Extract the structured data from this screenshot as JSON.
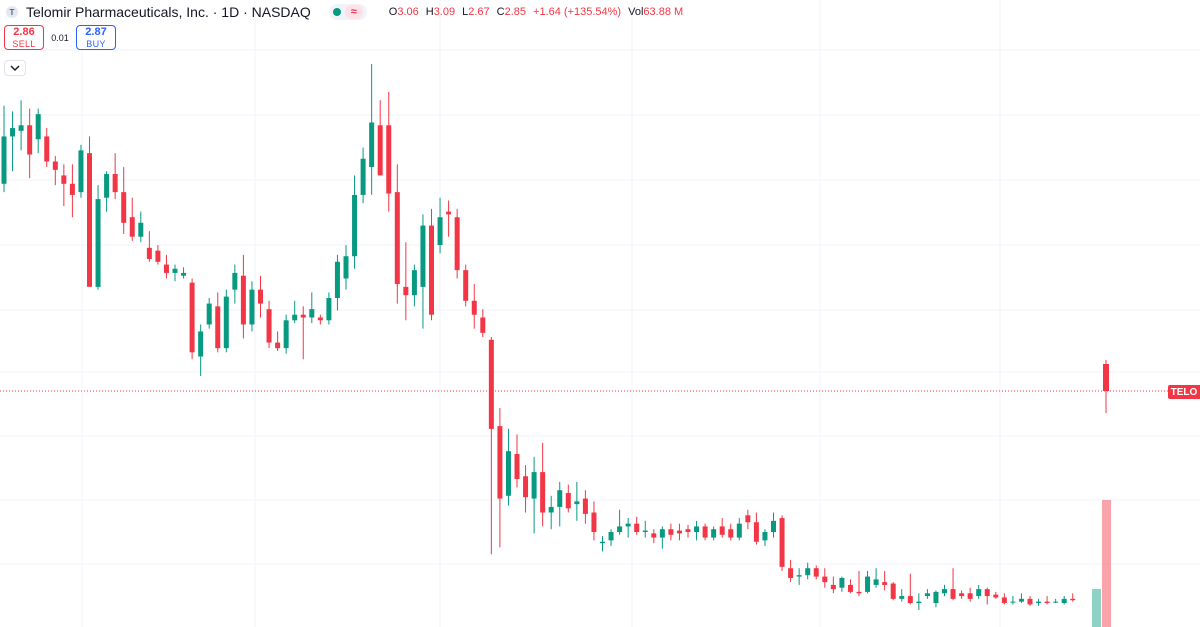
{
  "legend": {
    "symbol_icon": "T",
    "title": "Telomir Pharmaceuticals, Inc. · 1D · NASDAQ",
    "status_icons": [
      "market-open-dot-icon",
      "approx-icon"
    ],
    "approx_glyph": "≈",
    "ohlc": {
      "open_label": "O",
      "open": "3.06",
      "high_label": "H",
      "high": "3.09",
      "low_label": "L",
      "low": "2.67",
      "close_label": "C",
      "close": "2.85",
      "change": "+1.64 (+135.54%)",
      "vol_label": "Vol",
      "volume": "63.88 M"
    }
  },
  "trade": {
    "sell_price": "2.86",
    "sell_label": "SELL",
    "spread": "0.01",
    "buy_price": "2.87",
    "buy_label": "BUY"
  },
  "price_tag": "TELO",
  "colors": {
    "up": "#089981",
    "down": "#f23645",
    "grid": "#f0f3fa"
  },
  "chart_data": {
    "type": "candlestick",
    "ohlc": [
      [
        3.06,
        3.62,
        3.0,
        3.4
      ],
      [
        3.4,
        3.58,
        3.15,
        3.46
      ],
      [
        3.44,
        3.66,
        3.3,
        3.48
      ],
      [
        3.48,
        3.6,
        3.1,
        3.27
      ],
      [
        3.38,
        3.6,
        3.28,
        3.56
      ],
      [
        3.4,
        3.46,
        3.18,
        3.22
      ],
      [
        3.22,
        3.26,
        3.05,
        3.16
      ],
      [
        3.12,
        3.2,
        2.9,
        3.06
      ],
      [
        3.06,
        3.2,
        2.82,
        2.98
      ],
      [
        3.0,
        3.34,
        2.96,
        3.3
      ],
      [
        3.28,
        3.4,
        2.35,
        2.32
      ],
      [
        2.32,
        3.05,
        2.3,
        2.95
      ],
      [
        2.96,
        3.15,
        2.86,
        3.13
      ],
      [
        3.13,
        3.28,
        2.95,
        3.0
      ],
      [
        3.0,
        3.18,
        2.7,
        2.78
      ],
      [
        2.82,
        2.96,
        2.65,
        2.68
      ],
      [
        2.68,
        2.86,
        2.64,
        2.78
      ],
      [
        2.6,
        2.72,
        2.5,
        2.52
      ],
      [
        2.58,
        2.62,
        2.48,
        2.5
      ],
      [
        2.48,
        2.55,
        2.38,
        2.42
      ],
      [
        2.42,
        2.48,
        2.36,
        2.45
      ],
      [
        2.4,
        2.46,
        2.38,
        2.42
      ],
      [
        2.35,
        2.38,
        1.8,
        1.85
      ],
      [
        1.82,
        2.05,
        1.68,
        2.0
      ],
      [
        2.05,
        2.24,
        2.02,
        2.2
      ],
      [
        2.18,
        2.28,
        1.85,
        1.88
      ],
      [
        1.88,
        2.3,
        1.85,
        2.25
      ],
      [
        2.3,
        2.48,
        2.2,
        2.42
      ],
      [
        2.4,
        2.55,
        1.95,
        2.05
      ],
      [
        2.05,
        2.36,
        2.0,
        2.3
      ],
      [
        2.3,
        2.4,
        2.1,
        2.2
      ],
      [
        2.16,
        2.22,
        1.88,
        1.92
      ],
      [
        1.92,
        2.0,
        1.86,
        1.88
      ],
      [
        1.88,
        2.12,
        1.84,
        2.08
      ],
      [
        2.08,
        2.22,
        2.06,
        2.12
      ],
      [
        2.12,
        2.18,
        1.8,
        2.1
      ],
      [
        2.1,
        2.28,
        2.06,
        2.16
      ],
      [
        2.1,
        2.12,
        2.05,
        2.08
      ],
      [
        2.08,
        2.28,
        2.05,
        2.24
      ],
      [
        2.24,
        2.55,
        2.15,
        2.5
      ],
      [
        2.38,
        2.62,
        2.3,
        2.54
      ],
      [
        2.54,
        3.12,
        2.45,
        2.98
      ],
      [
        2.98,
        3.32,
        2.92,
        3.24
      ],
      [
        3.18,
        3.92,
        2.98,
        3.5
      ],
      [
        3.48,
        3.66,
        3.12,
        3.12
      ],
      [
        3.48,
        3.72,
        2.86,
        2.99
      ],
      [
        3.0,
        3.2,
        2.2,
        2.34
      ],
      [
        2.32,
        2.64,
        2.08,
        2.26
      ],
      [
        2.26,
        2.48,
        2.18,
        2.44
      ],
      [
        2.32,
        2.84,
        2.02,
        2.76
      ],
      [
        2.76,
        2.88,
        2.08,
        2.12
      ],
      [
        2.62,
        2.96,
        2.56,
        2.82
      ],
      [
        2.86,
        2.94,
        2.68,
        2.84
      ],
      [
        2.82,
        2.88,
        2.38,
        2.44
      ],
      [
        2.44,
        2.48,
        2.18,
        2.22
      ],
      [
        2.22,
        2.34,
        2.02,
        2.12
      ],
      [
        2.1,
        2.16,
        1.96,
        1.99
      ],
      [
        1.94,
        1.96,
        0.4,
        1.3
      ],
      [
        1.32,
        1.45,
        0.45,
        0.8
      ],
      [
        0.82,
        1.3,
        0.75,
        1.14
      ],
      [
        1.12,
        1.26,
        0.88,
        0.94
      ],
      [
        0.96,
        1.04,
        0.7,
        0.81
      ],
      [
        0.8,
        1.1,
        0.55,
        0.99
      ],
      [
        0.99,
        1.2,
        0.6,
        0.7
      ],
      [
        0.7,
        0.82,
        0.58,
        0.74
      ],
      [
        0.74,
        0.92,
        0.6,
        0.86
      ],
      [
        0.84,
        0.9,
        0.7,
        0.73
      ],
      [
        0.76,
        0.92,
        0.64,
        0.78
      ],
      [
        0.8,
        0.86,
        0.62,
        0.69
      ],
      [
        0.7,
        0.78,
        0.5,
        0.56
      ],
      [
        0.48,
        0.53,
        0.42,
        0.49
      ],
      [
        0.5,
        0.58,
        0.46,
        0.56
      ],
      [
        0.56,
        0.72,
        0.54,
        0.6
      ],
      [
        0.6,
        0.66,
        0.52,
        0.62
      ],
      [
        0.62,
        0.67,
        0.54,
        0.56
      ],
      [
        0.56,
        0.64,
        0.52,
        0.57
      ],
      [
        0.55,
        0.58,
        0.48,
        0.52
      ],
      [
        0.52,
        0.6,
        0.44,
        0.58
      ],
      [
        0.58,
        0.62,
        0.5,
        0.54
      ],
      [
        0.57,
        0.62,
        0.5,
        0.55
      ],
      [
        0.58,
        0.61,
        0.52,
        0.56
      ],
      [
        0.56,
        0.64,
        0.5,
        0.6
      ],
      [
        0.6,
        0.62,
        0.5,
        0.52
      ],
      [
        0.52,
        0.6,
        0.5,
        0.58
      ],
      [
        0.6,
        0.66,
        0.52,
        0.54
      ],
      [
        0.58,
        0.62,
        0.5,
        0.52
      ],
      [
        0.52,
        0.66,
        0.5,
        0.62
      ],
      [
        0.68,
        0.72,
        0.58,
        0.63
      ],
      [
        0.63,
        0.7,
        0.47,
        0.49
      ],
      [
        0.5,
        0.58,
        0.46,
        0.56
      ],
      [
        0.56,
        0.7,
        0.52,
        0.64
      ],
      [
        0.66,
        0.68,
        0.28,
        0.31
      ],
      [
        0.3,
        0.36,
        0.2,
        0.23
      ],
      [
        0.24,
        0.3,
        0.18,
        0.25
      ],
      [
        0.25,
        0.34,
        0.22,
        0.3
      ],
      [
        0.3,
        0.32,
        0.22,
        0.24
      ],
      [
        0.24,
        0.3,
        0.16,
        0.2
      ],
      [
        0.18,
        0.24,
        0.12,
        0.15
      ],
      [
        0.16,
        0.24,
        0.13,
        0.23
      ],
      [
        0.18,
        0.22,
        0.12,
        0.13
      ],
      [
        0.13,
        0.28,
        0.1,
        0.12
      ],
      [
        0.13,
        0.28,
        0.12,
        0.24
      ],
      [
        0.18,
        0.3,
        0.16,
        0.22
      ],
      [
        0.2,
        0.28,
        0.14,
        0.18
      ],
      [
        0.19,
        0.2,
        0.07,
        0.08
      ],
      [
        0.08,
        0.15,
        0.06,
        0.1
      ],
      [
        0.1,
        0.26,
        0.04,
        0.05
      ],
      [
        0.05,
        0.12,
        0.0,
        0.06
      ],
      [
        0.1,
        0.15,
        0.08,
        0.12
      ],
      [
        0.05,
        0.14,
        0.02,
        0.13
      ],
      [
        0.12,
        0.18,
        0.1,
        0.15
      ],
      [
        0.15,
        0.3,
        0.07,
        0.08
      ],
      [
        0.12,
        0.14,
        0.08,
        0.1
      ],
      [
        0.12,
        0.16,
        0.06,
        0.08
      ],
      [
        0.1,
        0.18,
        0.08,
        0.15
      ],
      [
        0.15,
        0.16,
        0.04,
        0.1
      ],
      [
        0.11,
        0.13,
        0.08,
        0.09
      ],
      [
        0.09,
        0.12,
        0.04,
        0.05
      ],
      [
        0.06,
        0.1,
        0.04,
        0.06
      ],
      [
        0.06,
        0.12,
        0.05,
        0.08
      ],
      [
        0.08,
        0.1,
        0.03,
        0.04
      ],
      [
        0.05,
        0.08,
        0.03,
        0.06
      ],
      [
        0.06,
        0.1,
        0.04,
        0.05
      ],
      [
        0.06,
        0.08,
        0.05,
        0.06
      ],
      [
        0.05,
        0.1,
        0.04,
        0.08
      ],
      [
        0.08,
        0.12,
        0.06,
        0.07
      ]
    ]
  }
}
